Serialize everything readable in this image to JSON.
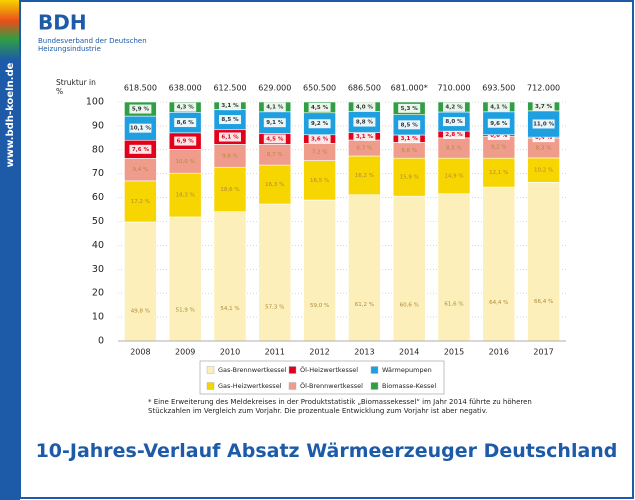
{
  "header": {
    "logo": "BDH",
    "org_name": "Bundesverband der Deutschen Heizungsindustrie",
    "website": "www.bdh-koeln.de"
  },
  "chart_data": {
    "type": "stacked_bar",
    "title": "10-Jahres-Verlauf Absatz Wärmeerzeuger Deutschland",
    "y_label": "Struktur in %",
    "categories": [
      "2008",
      "2009",
      "2010",
      "2011",
      "2012",
      "2013",
      "2014",
      "2015",
      "2016",
      "2017"
    ],
    "totals": [
      {
        "value": 618500,
        "label": "618.500"
      },
      {
        "value": 638000,
        "label": "638.000"
      },
      {
        "value": 612500,
        "label": "612.500"
      },
      {
        "value": 629000,
        "label": "629.000"
      },
      {
        "value": 650500,
        "label": "650.500"
      },
      {
        "value": 686500,
        "label": "686.500"
      },
      {
        "value": 681000,
        "label": "681.000*"
      },
      {
        "value": 710000,
        "label": "710.000"
      },
      {
        "value": 693500,
        "label": "693.500"
      },
      {
        "value": 712000,
        "label": "712.000"
      }
    ],
    "series": [
      {
        "name": "Gas-Brennwertkessel",
        "color": "#fcefb9",
        "values": [
          49.8,
          51.9,
          54.1,
          57.3,
          59.0,
          61.2,
          60.6,
          61.6,
          64.4,
          66.4
        ],
        "value_labels": [
          "49,8 %",
          "51,9 %",
          "54,1 %",
          "57,3 %",
          "59,0 %",
          "61,2 %",
          "60,6 %",
          "61,6 %",
          "64,4 %",
          "66,4 %"
        ]
      },
      {
        "name": "Gas-Heizwertkessel",
        "color": "#f6d500",
        "values": [
          17.2,
          18.3,
          18.6,
          16.3,
          16.5,
          16.2,
          15.9,
          14.9,
          12.1,
          10.2
        ],
        "value_labels": [
          "17,2 %",
          "18,3 %",
          "18,6 %",
          "16,3 %",
          "16,5 %",
          "16,2 %",
          "15,9 %",
          "14,9 %",
          "12,1 %",
          "10,2 %"
        ]
      },
      {
        "name": "Öl-Brennwertkessel",
        "color": "#ef9c8c",
        "values": [
          9.4,
          10.0,
          9.6,
          8.7,
          7.2,
          6.7,
          6.6,
          8.5,
          9.2,
          8.3
        ],
        "value_labels": [
          "9,4 %",
          "10,0 %",
          "9,6 %",
          "8,7 %",
          "7,2 %",
          "6,7 %",
          "6,6 %",
          "8,5 %",
          "9,2 %",
          "8,3 %"
        ]
      },
      {
        "name": "Öl-Heizwertkessel",
        "color": "#e2001a",
        "values": [
          7.6,
          6.9,
          6.1,
          4.5,
          3.6,
          3.1,
          3.1,
          2.8,
          0.6,
          0.4
        ],
        "value_labels": [
          "7,6 %",
          "6,9 %",
          "6,1 %",
          "4,5 %",
          "3,6 %",
          "3,1 %",
          "3,1 %",
          "2,8 %",
          "0,6 %",
          "0,4 %"
        ]
      },
      {
        "name": "Wärmepumpen",
        "color": "#1e9fe0",
        "values": [
          10.1,
          8.6,
          8.5,
          9.1,
          9.2,
          8.8,
          8.5,
          8.0,
          9.6,
          11.0
        ],
        "value_labels": [
          "10,1 %",
          "8,6 %",
          "8,5 %",
          "9,1 %",
          "9,2 %",
          "8,8 %",
          "8,5 %",
          "8,0 %",
          "9,6 %",
          "11,0 %"
        ]
      },
      {
        "name": "Biomasse-Kessel",
        "color": "#2f9e44",
        "values": [
          5.9,
          4.3,
          3.1,
          4.1,
          4.5,
          4.0,
          5.3,
          4.2,
          4.1,
          3.7
        ],
        "value_labels": [
          "5,9 %",
          "4,3 %",
          "3,1 %",
          "4,1 %",
          "4,5 %",
          "4,0 %",
          "5,3 %",
          "4,2 %",
          "4,1 %",
          "3,7 %"
        ]
      }
    ],
    "ylim": [
      0,
      100
    ],
    "yticks": [
      0,
      10,
      20,
      30,
      40,
      50,
      60,
      70,
      80,
      90,
      100
    ],
    "grid": true,
    "footnote": "* Eine Erweiterung des Meldekreises in der Produktstatistik „Biomassekessel“ im Jahr 2014 führte zu höheren Stückzahlen im Vergleich zum Vorjahr. Die prozentuale Entwicklung zum Vorjahr ist aber negativ."
  }
}
